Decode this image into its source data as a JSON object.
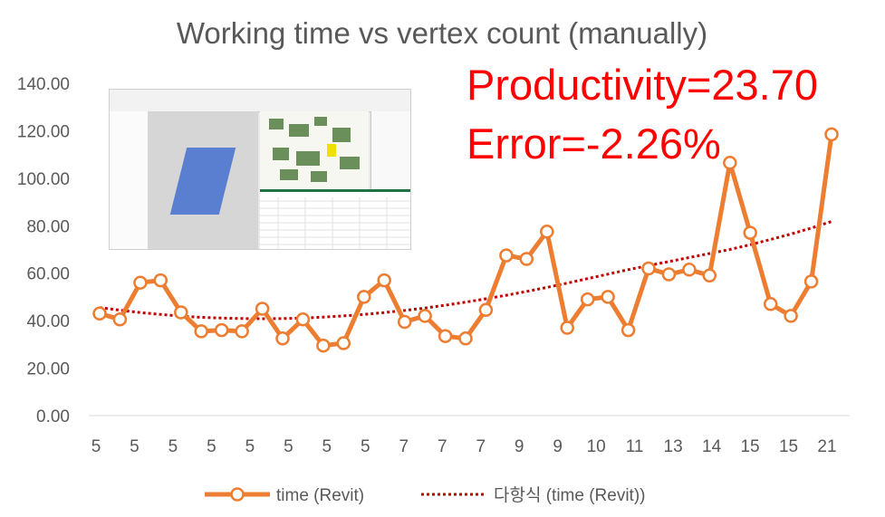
{
  "chart_data": {
    "type": "line",
    "title": "Working time vs vertex count (manually)",
    "ylim": [
      0,
      140
    ],
    "yticks": [
      "0.00",
      "20.00",
      "40.00",
      "60.00",
      "80.00",
      "100.00",
      "120.00",
      "140.00"
    ],
    "xtick_labels": [
      "5",
      "5",
      "5",
      "5",
      "5",
      "5",
      "5",
      "5",
      "7",
      "7",
      "7",
      "9",
      "9",
      "10",
      "11",
      "13",
      "14",
      "15",
      "15",
      "21"
    ],
    "series": [
      {
        "name": "time (Revit)",
        "color": "#ed7d31",
        "marker": "circle-open",
        "values": [
          43.0,
          40.5,
          56.0,
          57.0,
          43.5,
          35.5,
          36.0,
          35.5,
          45.0,
          32.5,
          40.5,
          29.5,
          30.5,
          50.0,
          57.0,
          39.5,
          42.0,
          33.5,
          32.5,
          44.5,
          67.5,
          66.0,
          77.5,
          37.0,
          49.0,
          50.0,
          36.0,
          62.0,
          59.5,
          61.5,
          59.0,
          106.5,
          77.0,
          47.0,
          42.0,
          56.5,
          118.5
        ]
      },
      {
        "name": "다항식 (time (Revit))",
        "color": "#c00000",
        "style": "dotted",
        "trend": "polynomial",
        "values": [
          45.5,
          44.4,
          43.4,
          42.6,
          41.9,
          41.4,
          41.1,
          40.9,
          40.8,
          40.9,
          41.1,
          41.5,
          42.0,
          42.6,
          43.4,
          44.3,
          45.3,
          46.5,
          47.8,
          49.2,
          50.7,
          52.3,
          54.0,
          55.8,
          57.7,
          59.6,
          61.5,
          63.2,
          64.9,
          66.6,
          68.3,
          70.0,
          72.0,
          74.2,
          76.5,
          79.0,
          81.8
        ]
      }
    ],
    "annotations": [
      "Productivity=23.70",
      "Error=-2.26%"
    ],
    "legend": "bottom",
    "grid": false
  }
}
